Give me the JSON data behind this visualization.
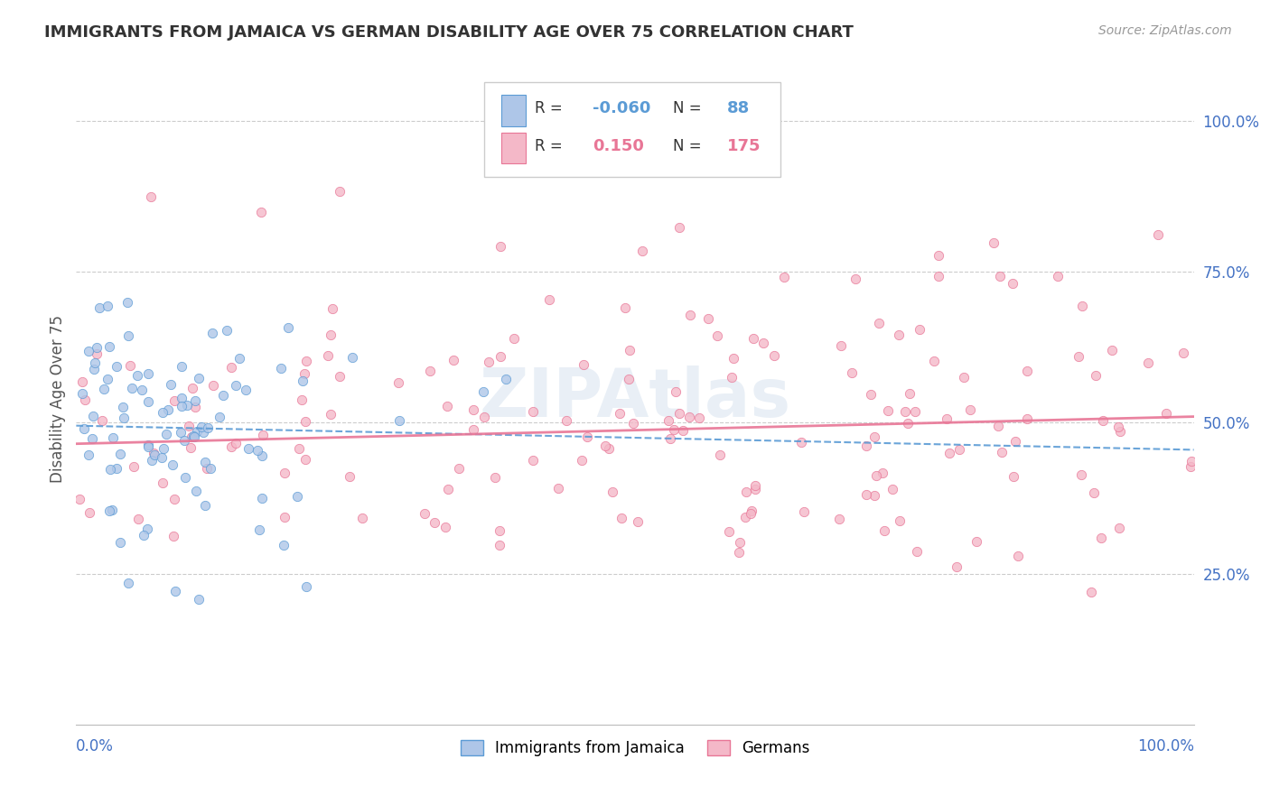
{
  "title": "IMMIGRANTS FROM JAMAICA VS GERMAN DISABILITY AGE OVER 75 CORRELATION CHART",
  "source": "Source: ZipAtlas.com",
  "ylabel": "Disability Age Over 75",
  "ytick_labels": [
    "25.0%",
    "50.0%",
    "75.0%",
    "100.0%"
  ],
  "ytick_values": [
    0.25,
    0.5,
    0.75,
    1.0
  ],
  "R1": -0.06,
  "N1": 88,
  "R2": 0.15,
  "N2": 175,
  "color_blue": "#5b9bd5",
  "color_blue_light": "#aec6e8",
  "color_pink": "#e87696",
  "color_pink_light": "#f4b8c8",
  "background_color": "#ffffff",
  "grid_color": "#cccccc",
  "title_color": "#333333",
  "axis_label_color": "#4472c4",
  "seed": 42,
  "xlim": [
    0.0,
    1.0
  ],
  "ylim": [
    0.0,
    1.08
  ],
  "trend_blue_start": 0.495,
  "trend_blue_end": 0.455,
  "trend_pink_start": 0.465,
  "trend_pink_end": 0.51
}
